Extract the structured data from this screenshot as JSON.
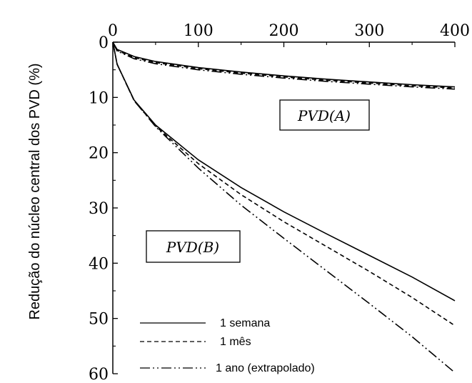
{
  "chart_data": {
    "type": "line",
    "ylabel": "Redução do núcleo central dos PVD (%)",
    "xlabel": "",
    "xlim": [
      0,
      400
    ],
    "ylim": [
      0,
      60
    ],
    "y_inverted": true,
    "x_axis_position": "top",
    "x_ticks": [
      "0",
      "100",
      "200",
      "300",
      "400"
    ],
    "y_ticks": [
      "0",
      "10",
      "20",
      "30",
      "40",
      "50",
      "60"
    ],
    "annotations": [
      "PVD(A)",
      "PVD(B)"
    ],
    "legend": {
      "placement": "bottom-left",
      "entries": [
        {
          "label": "1 semana",
          "dash": "solid"
        },
        {
          "label": "1 mês",
          "dash": "dashed"
        },
        {
          "label": "1 ano (extrapolado)",
          "dash": "dashdotdot"
        }
      ]
    },
    "series": [
      {
        "group": "PVD(A)",
        "legend": "1 semana",
        "dash": "solid",
        "x": [
          0,
          5,
          25,
          50,
          100,
          150,
          200,
          250,
          300,
          350,
          400
        ],
        "y": [
          0,
          1.3,
          2.6,
          3.5,
          4.6,
          5.4,
          6.1,
          6.7,
          7.2,
          7.7,
          8.1
        ]
      },
      {
        "group": "PVD(A)",
        "legend": "1 mês",
        "dash": "dashed",
        "x": [
          0,
          5,
          25,
          50,
          100,
          150,
          200,
          250,
          300,
          350,
          400
        ],
        "y": [
          0,
          1.5,
          2.8,
          3.7,
          4.8,
          5.6,
          6.3,
          6.9,
          7.4,
          7.9,
          8.3
        ]
      },
      {
        "group": "PVD(A)",
        "legend": "1 ano (extrapolado)",
        "dash": "dashdotdot",
        "x": [
          0,
          5,
          25,
          50,
          100,
          150,
          200,
          250,
          300,
          350,
          400
        ],
        "y": [
          0,
          1.6,
          3.0,
          3.9,
          5.0,
          5.8,
          6.5,
          7.1,
          7.6,
          8.1,
          8.5
        ]
      },
      {
        "group": "PVD(B)",
        "legend": "1 semana",
        "dash": "solid",
        "x": [
          0,
          5,
          25,
          50,
          100,
          150,
          200,
          250,
          300,
          350,
          400
        ],
        "y": [
          0,
          4.0,
          10.5,
          15.0,
          21.3,
          26.3,
          30.7,
          34.7,
          38.6,
          42.5,
          46.8
        ]
      },
      {
        "group": "PVD(B)",
        "legend": "1 mês",
        "dash": "dashed",
        "x": [
          0,
          5,
          25,
          50,
          100,
          150,
          200,
          250,
          300,
          350,
          400
        ],
        "y": [
          0,
          4.0,
          10.6,
          15.2,
          22.0,
          27.6,
          32.5,
          37.0,
          41.5,
          46.2,
          51.3
        ]
      },
      {
        "group": "PVD(B)",
        "legend": "1 ano (extrapolado)",
        "dash": "dashdotdot",
        "x": [
          0,
          5,
          25,
          50,
          100,
          150,
          200,
          250,
          300,
          350,
          400
        ],
        "y": [
          0,
          4.0,
          10.6,
          15.3,
          22.8,
          29.5,
          35.5,
          41.4,
          47.3,
          53.3,
          59.8
        ]
      }
    ]
  }
}
